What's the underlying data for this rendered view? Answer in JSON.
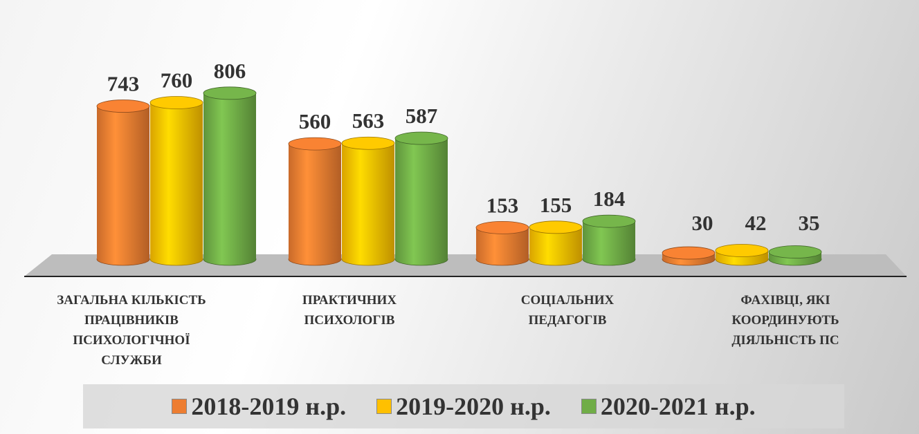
{
  "chart_data": {
    "type": "bar3d",
    "categories": [
      "ЗАГАЛЬНА КІЛЬКІСТЬ ПРАЦІВНИКІВ ПСИХОЛОГІЧНОЇ СЛУЖБИ",
      "ПРАКТИЧНИХ ПСИХОЛОГІВ",
      "СОЦІАЛЬНИХ ПЕДАГОГІВ",
      "ФАХІВЦІ, ЯКІ КООРДИНУЮТЬ ДІЯЛЬНІСТЬ ПС"
    ],
    "series": [
      {
        "name": "2018-2019 н.р.",
        "color": "#ed7d31",
        "values": [
          743,
          560,
          153,
          30
        ]
      },
      {
        "name": "2019-2020 н.р.",
        "color": "#ffc000",
        "values": [
          760,
          563,
          155,
          42
        ]
      },
      {
        "name": "2020-2021 н.р.",
        "color": "#70ad47",
        "values": [
          806,
          587,
          184,
          35
        ]
      }
    ],
    "ylim": [
      0,
      1000
    ],
    "legend": "bottom"
  }
}
